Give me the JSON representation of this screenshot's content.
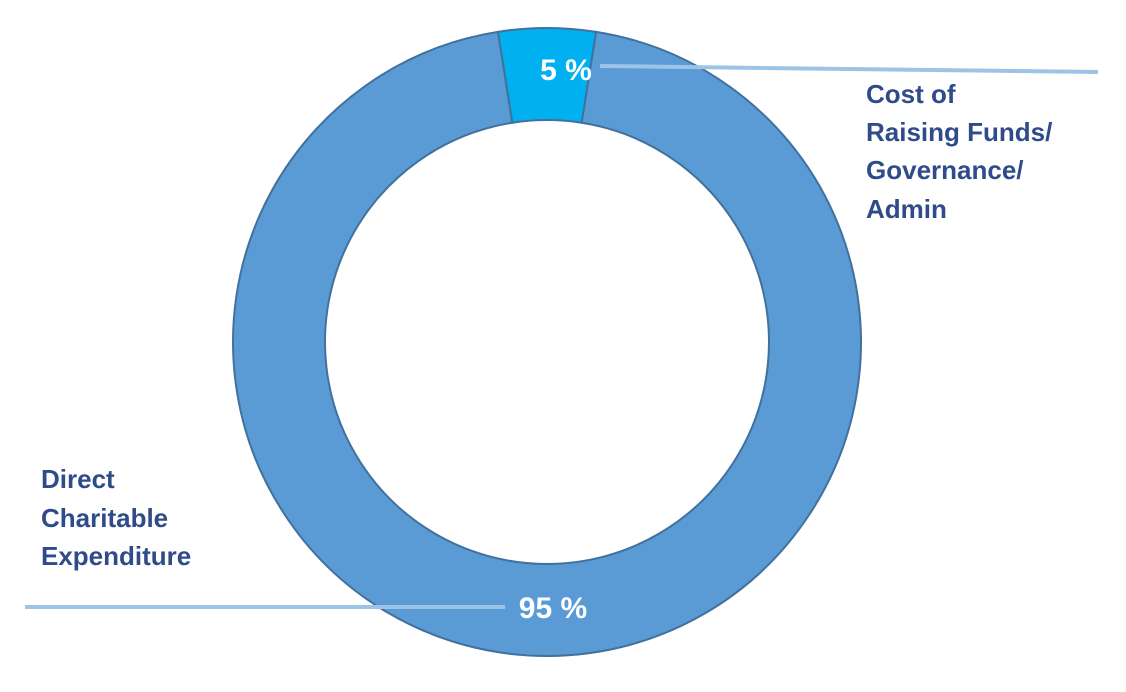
{
  "chart_data": {
    "type": "pie",
    "subtype": "donut",
    "categories": [
      "Direct Charitable Expenditure",
      "Cost of Raising Funds/ Governance/ Admin"
    ],
    "values": [
      95,
      5
    ],
    "data_labels": [
      "95 %",
      "5 %"
    ],
    "category_label_lines": [
      [
        "Direct",
        "Charitable",
        "Expenditure"
      ],
      [
        "Cost of",
        "Raising Funds/",
        "Governance/",
        "Admin"
      ]
    ],
    "colors": [
      "#5b9bd5",
      "#00b0f0"
    ],
    "leader_line_color": "#9dc3e6",
    "label_color": "#2f4b8a",
    "title": "",
    "legend": "none"
  }
}
